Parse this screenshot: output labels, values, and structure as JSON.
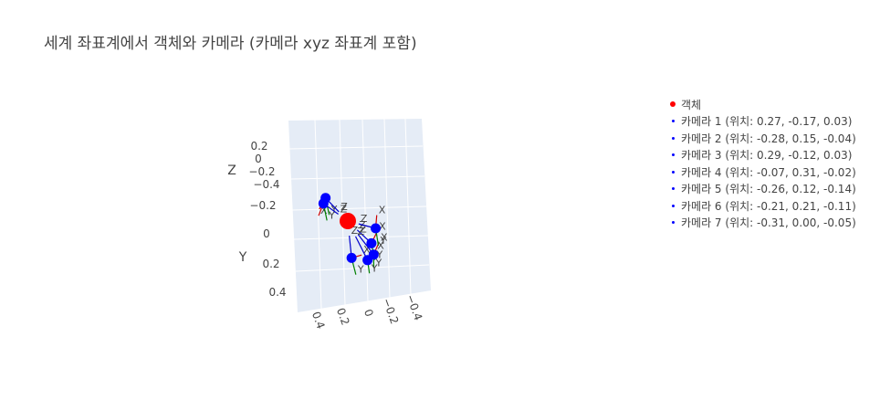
{
  "title": "세계 좌표계에서 객체와 카메라 (카메라 xyz 좌표계 포함)",
  "colors": {
    "object": "#ff0000",
    "camera": "#0000ff",
    "axis_x": "#cc0000",
    "axis_y": "#008000",
    "axis_z": "#0000cc",
    "scene_bg": "#e5ecf6",
    "grid": "#ffffff",
    "text": "#444444"
  },
  "legend": [
    {
      "label": "객체",
      "color": "#ff0000",
      "marker": "object"
    },
    {
      "label": "카메라 1 (위치: 0.27, -0.17, 0.03)",
      "color": "#0000ff",
      "marker": "camera"
    },
    {
      "label": "카메라 2 (위치: -0.28, 0.15, -0.04)",
      "color": "#0000ff",
      "marker": "camera"
    },
    {
      "label": "카메라 3 (위치: 0.29, -0.12, 0.03)",
      "color": "#0000ff",
      "marker": "camera"
    },
    {
      "label": "카메라 4 (위치: -0.07, 0.31, -0.02)",
      "color": "#0000ff",
      "marker": "camera"
    },
    {
      "label": "카메라 5 (위치: -0.26, 0.12, -0.14)",
      "color": "#0000ff",
      "marker": "camera"
    },
    {
      "label": "카메라 6 (위치: -0.21, 0.21, -0.11)",
      "color": "#0000ff",
      "marker": "camera"
    },
    {
      "label": "카메라 7 (위치: -0.31, 0.00, -0.05)",
      "color": "#0000ff",
      "marker": "camera"
    }
  ],
  "chart_data": {
    "type": "scatter3d",
    "title": "세계 좌표계에서 객체와 카메라 (카메라 xyz 좌표계 포함)",
    "axes": {
      "x": {
        "label": "",
        "ticks": [
          "0.4",
          "0.2",
          "0",
          "−0.2",
          "−0.4"
        ]
      },
      "y": {
        "label": "Y",
        "ticks": [
          "−0.2",
          "0",
          "0.2",
          "0.4"
        ]
      },
      "z": {
        "label": "Z",
        "ticks": [
          "0.2",
          "0",
          "−0.2",
          "−0.4"
        ]
      }
    },
    "object": {
      "name": "객체",
      "position": [
        0,
        0,
        0
      ]
    },
    "cameras": [
      {
        "name": "카메라 1",
        "position": [
          0.27,
          -0.17,
          0.03
        ]
      },
      {
        "name": "카메라 2",
        "position": [
          -0.28,
          0.15,
          -0.04
        ]
      },
      {
        "name": "카메라 3",
        "position": [
          0.29,
          -0.12,
          0.03
        ]
      },
      {
        "name": "카메라 4",
        "position": [
          -0.07,
          0.31,
          -0.02
        ]
      },
      {
        "name": "카메라 5",
        "position": [
          -0.26,
          0.12,
          -0.14
        ]
      },
      {
        "name": "카메라 6",
        "position": [
          -0.21,
          0.21,
          -0.11
        ]
      },
      {
        "name": "카메라 7",
        "position": [
          -0.31,
          0.0,
          -0.05
        ]
      }
    ],
    "camera_axis_labels": [
      "X",
      "Y",
      "Z"
    ],
    "legend_position": "right"
  }
}
